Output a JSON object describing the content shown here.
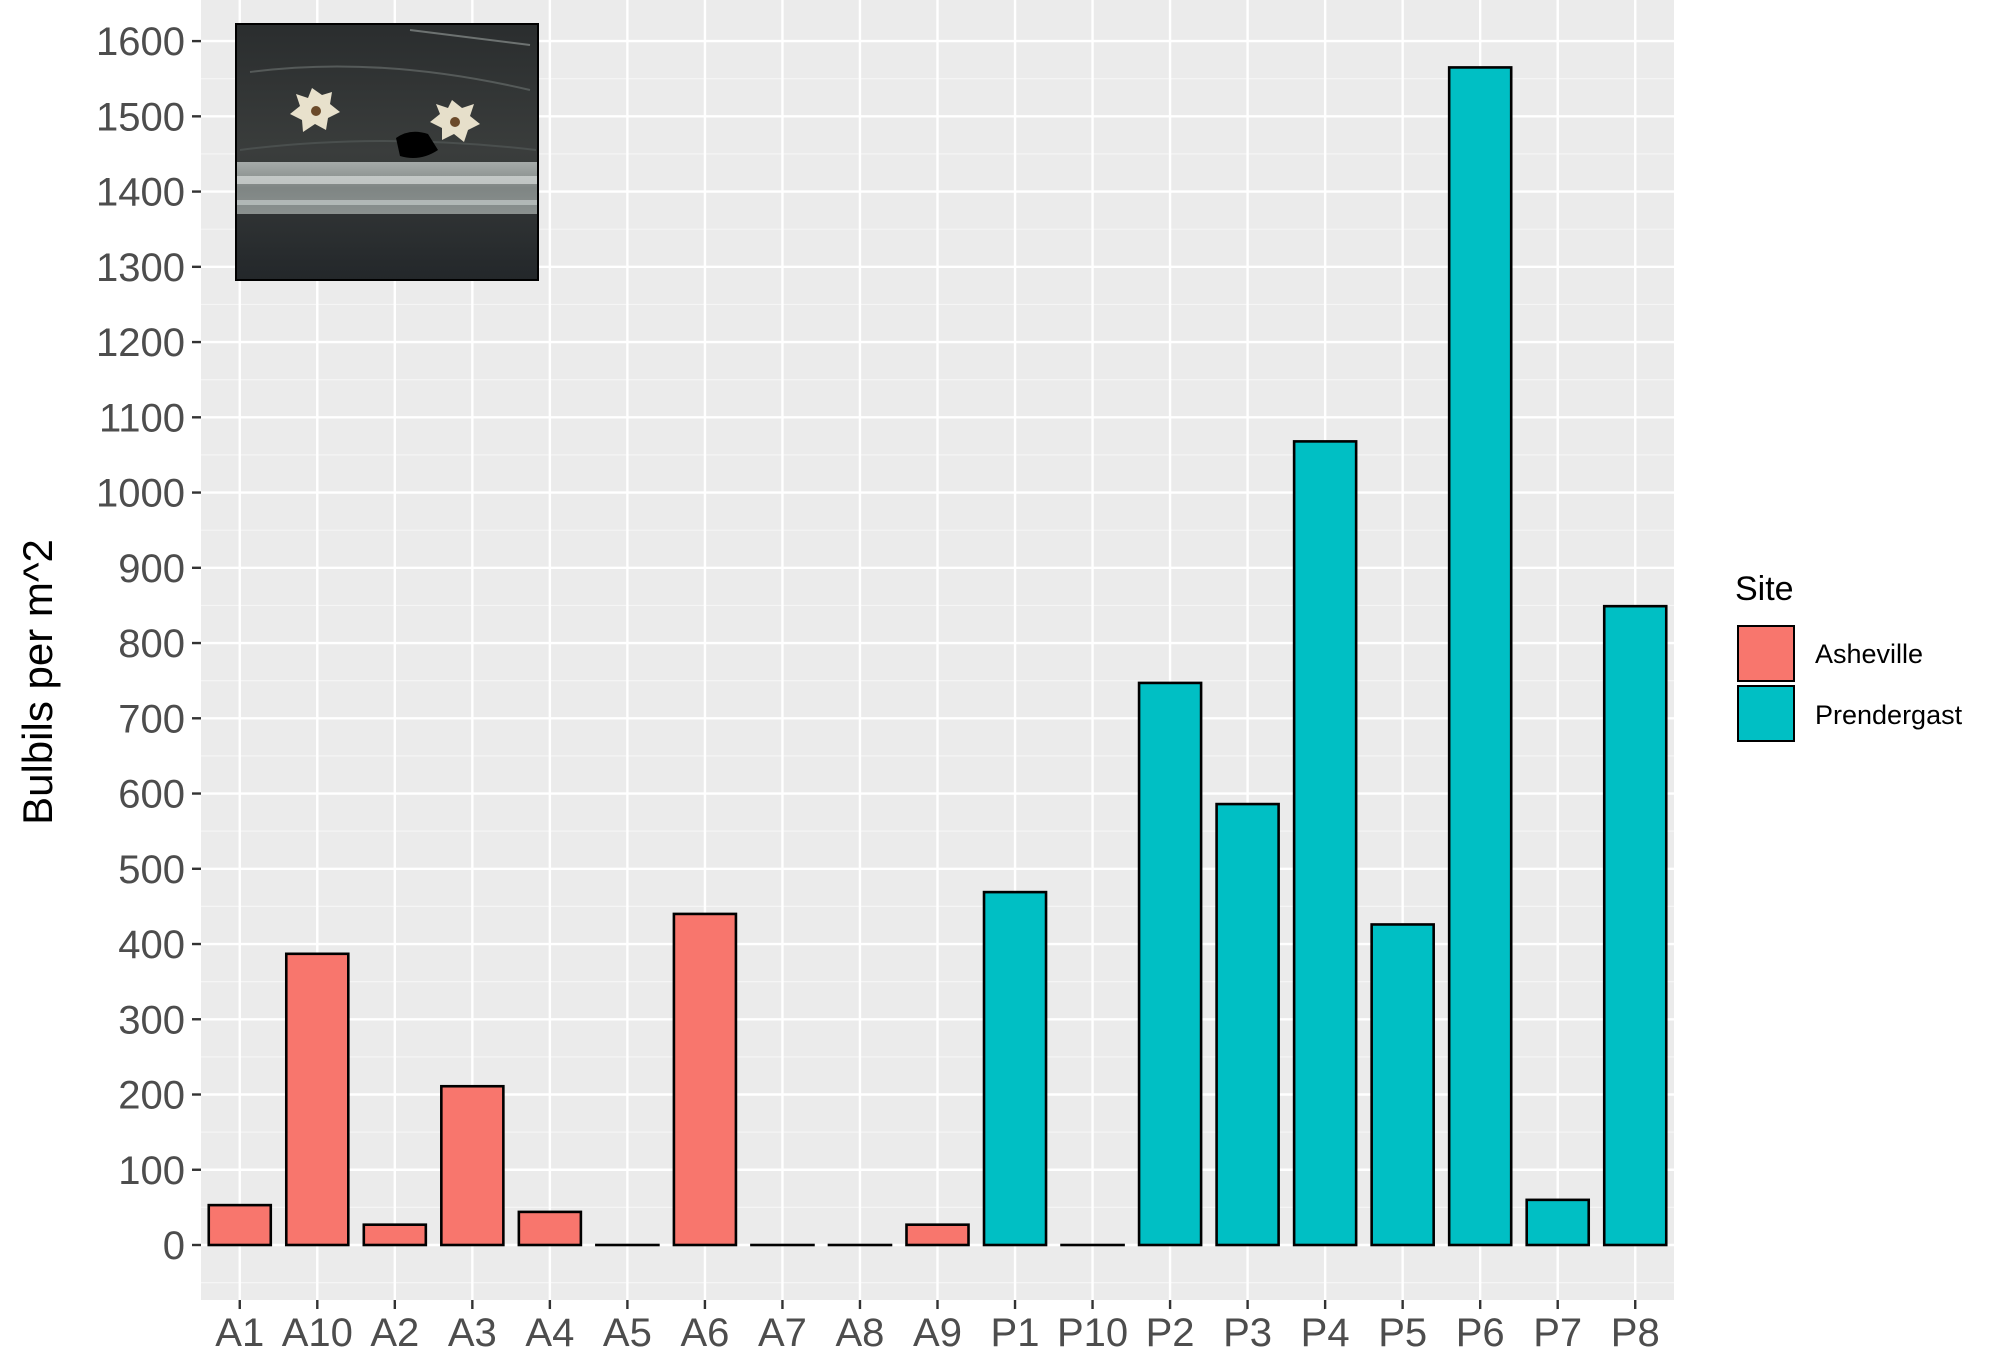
{
  "chart_data": {
    "type": "bar",
    "ylabel": "Bulbils per m^2",
    "xlabel": "",
    "ylim": [
      -75,
      1645
    ],
    "y_ticks": [
      0,
      100,
      200,
      300,
      400,
      500,
      600,
      700,
      800,
      900,
      1000,
      1100,
      1200,
      1300,
      1400,
      1500,
      1600
    ],
    "grid": true,
    "categories": [
      "A1",
      "A10",
      "A2",
      "A3",
      "A4",
      "A5",
      "A6",
      "A7",
      "A8",
      "A9",
      "P1",
      "P10",
      "P2",
      "P3",
      "P4",
      "P5",
      "P6",
      "P7",
      "P8"
    ],
    "values": [
      53,
      387,
      27,
      211,
      44,
      0,
      440,
      0,
      0,
      27,
      469,
      0,
      747,
      586,
      1068,
      426,
      1565,
      60,
      849
    ],
    "site": [
      "Asheville",
      "Asheville",
      "Asheville",
      "Asheville",
      "Asheville",
      "Asheville",
      "Asheville",
      "Asheville",
      "Asheville",
      "Asheville",
      "Prendergast",
      "Prendergast",
      "Prendergast",
      "Prendergast",
      "Prendergast",
      "Prendergast",
      "Prendergast",
      "Prendergast",
      "Prendergast"
    ],
    "legend": {
      "title": "Site",
      "placement": "right",
      "entries": [
        {
          "name": "Asheville",
          "color": "#F8766D"
        },
        {
          "name": "Prendergast",
          "color": "#00BFC4"
        }
      ]
    },
    "panel_background": "#EBEBEB",
    "gridline_color": "#FFFFFF",
    "bar_outline_color": "#000000",
    "inset_image": "photo of two white star-shaped bulbils in a clear plastic dish"
  }
}
